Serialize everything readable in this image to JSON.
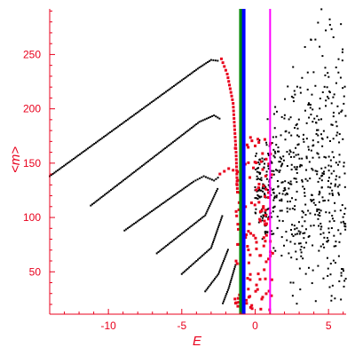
{
  "chart_data": {
    "type": "scatter",
    "xlabel": "E",
    "ylabel": "<m>",
    "xlim": [
      -14,
      6.2
    ],
    "ylim": [
      11,
      292
    ],
    "x_ticks": [
      -10,
      -5,
      0,
      5
    ],
    "x_tick_labels": [
      "-10",
      "-5",
      "0",
      "5"
    ],
    "y_ticks": [
      50,
      100,
      150,
      200,
      250
    ],
    "y_tick_labels": [
      "50",
      "100",
      "150",
      "200",
      "250"
    ],
    "grid": false,
    "legend": "none",
    "axis_color": "#e8001c",
    "vertical_lines": [
      {
        "x": -0.97,
        "color": "#008a00"
      },
      {
        "x": -0.78,
        "color": "#0000ff"
      },
      {
        "x": 1.02,
        "color": "#ff00ff"
      }
    ],
    "series": [
      {
        "color": "#000000",
        "segments": [
          [
            [
              -14,
              138
            ],
            [
              -3.8,
              238
            ],
            [
              -3,
              245
            ],
            [
              -2.4,
              244
            ]
          ],
          [
            [
              -11.2,
              111
            ],
            [
              -3.8,
              188
            ],
            [
              -2.8,
              194
            ],
            [
              -2.3,
              190
            ]
          ],
          [
            [
              -8.9,
              88
            ],
            [
              -4.2,
              133
            ],
            [
              -3.5,
              138
            ],
            [
              -2.8,
              134
            ],
            [
              -2.4,
              138
            ]
          ],
          [
            [
              -6.7,
              67
            ],
            [
              -3.4,
              102
            ],
            [
              -2.5,
              128
            ]
          ],
          [
            [
              -5,
              48
            ],
            [
              -3,
              72
            ],
            [
              -2.2,
              103
            ]
          ],
          [
            [
              -3.4,
              32
            ],
            [
              -2.5,
              48
            ],
            [
              -1.8,
              72
            ]
          ],
          [
            [
              -2.2,
              21
            ],
            [
              -1.8,
              35
            ],
            [
              -1.3,
              58
            ]
          ]
        ],
        "cloud": {
          "x": [
            0,
            6.2
          ],
          "y": [
            20,
            292
          ]
        }
      },
      {
        "color": "#e8001c",
        "segments": [
          [
            [
              -2.3,
              246
            ],
            [
              -1.9,
              232
            ],
            [
              -1.5,
              205
            ],
            [
              -1.3,
              160
            ],
            [
              -1.2,
              120
            ]
          ],
          [
            [
              -2.4,
              140
            ],
            [
              -1.8,
              145
            ],
            [
              -1.2,
              142
            ],
            [
              -0.8,
              138
            ]
          ]
        ],
        "cloud": {
          "x": [
            -1.4,
            1.2
          ],
          "y": [
            15,
            175
          ]
        }
      }
    ]
  }
}
